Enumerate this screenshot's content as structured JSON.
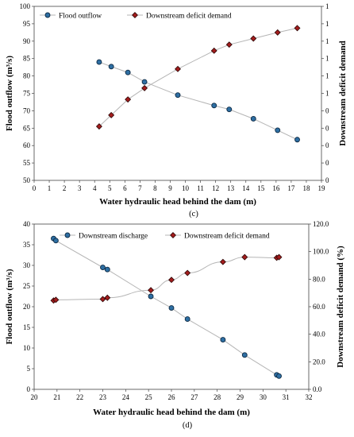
{
  "chart_data": [
    {
      "type": "line",
      "caption": "(c)",
      "xlabel": "Water hydraulic head behind the dam (m)",
      "ylabel": "Flood outflow (m³/s)",
      "y2label": "Downstream deficit demand",
      "xlim": [
        0,
        19
      ],
      "xticks": [
        0,
        1,
        2,
        3,
        4,
        5,
        6,
        7,
        8,
        9,
        10,
        11,
        12,
        13,
        14,
        15,
        16,
        17,
        18,
        19
      ],
      "ylim": [
        50,
        100
      ],
      "yticks": [
        50,
        55,
        60,
        65,
        70,
        75,
        80,
        85,
        90,
        95,
        100
      ],
      "y2lim": [
        0,
        1
      ],
      "y2tick_labels": [
        "0",
        "0",
        "0",
        "0",
        "0",
        "1",
        "1",
        "1",
        "1",
        "1",
        "1"
      ],
      "grid": false,
      "legend_position": "top",
      "series": [
        {
          "name": "Flood outflow",
          "axis": "left",
          "marker": "circle",
          "color": "#1f4e79",
          "x": [
            4.3,
            5.1,
            6.2,
            7.3,
            9.5,
            11.9,
            12.9,
            14.5,
            16.1,
            17.4
          ],
          "y": [
            84.0,
            82.7,
            81.0,
            78.3,
            74.5,
            71.5,
            70.4,
            67.7,
            64.4,
            61.7
          ]
        },
        {
          "name": "Downstream deficit demand",
          "axis": "right",
          "marker": "diamond",
          "color": "#8b1a1a",
          "x": [
            4.3,
            5.1,
            6.2,
            7.3,
            9.5,
            11.9,
            12.9,
            14.5,
            16.1,
            17.4
          ],
          "y": [
            0.31,
            0.375,
            0.465,
            0.53,
            0.64,
            0.745,
            0.78,
            0.815,
            0.85,
            0.875
          ]
        }
      ]
    },
    {
      "type": "line",
      "caption": "(d)",
      "xlabel": "Water hydraulic head behind the dam (m)",
      "ylabel": "Flood outflow (m³/s)",
      "y2label": "Downstream deficit demand (%)",
      "xlim": [
        20,
        32
      ],
      "xticks": [
        20,
        21,
        22,
        23,
        24,
        25,
        26,
        27,
        28,
        29,
        30,
        31,
        32
      ],
      "ylim": [
        0,
        40
      ],
      "yticks": [
        0,
        5,
        10,
        15,
        20,
        25,
        30,
        35,
        40
      ],
      "y2lim": [
        0,
        120
      ],
      "y2tick_labels": [
        "0.0",
        "20.0",
        "40.0",
        "60.0",
        "80.0",
        "100.0",
        "120.0"
      ],
      "grid": false,
      "legend_position": "top",
      "series": [
        {
          "name": "Downstream discharge",
          "axis": "left",
          "marker": "circle",
          "color": "#1f4e79",
          "x": [
            20.85,
            20.95,
            23.0,
            23.2,
            25.1,
            26.0,
            26.7,
            28.25,
            29.2,
            30.6,
            30.7
          ],
          "y": [
            36.5,
            36.0,
            29.5,
            29.0,
            22.5,
            19.7,
            17.0,
            12.0,
            8.3,
            3.5,
            3.2
          ]
        },
        {
          "name": "Downstream deficit demand",
          "axis": "right",
          "marker": "diamond",
          "color": "#8b1a1a",
          "x": [
            20.85,
            20.95,
            23.0,
            23.2,
            25.1,
            26.0,
            26.7,
            28.25,
            29.2,
            30.6,
            30.7
          ],
          "y": [
            64.5,
            65.0,
            65.5,
            66.5,
            72.0,
            79.5,
            84.5,
            92.5,
            96.0,
            95.5,
            96.0
          ]
        }
      ]
    }
  ]
}
